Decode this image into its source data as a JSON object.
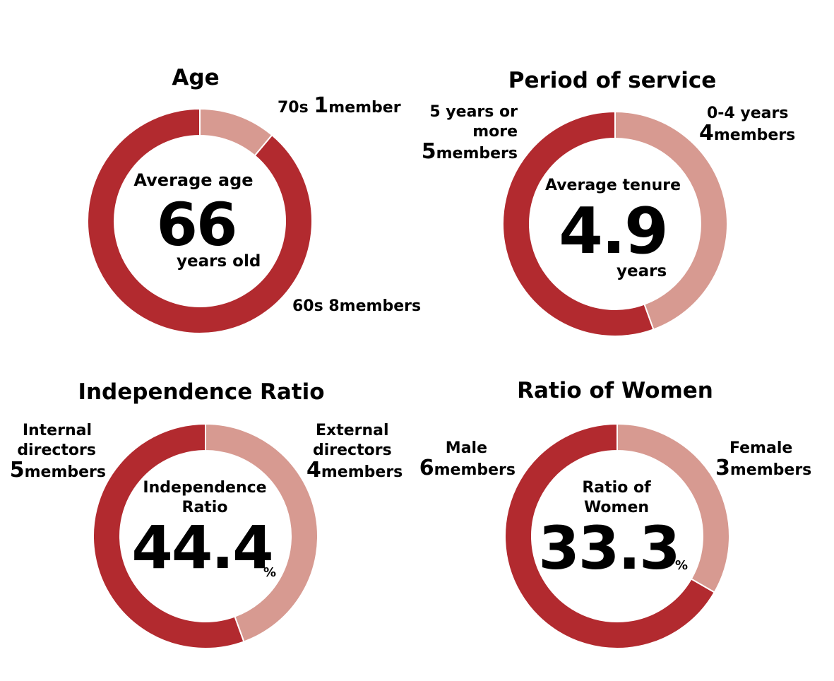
{
  "colors": {
    "dark": "#b22a2f",
    "light": "#d79a91"
  },
  "chart_data": [
    {
      "type": "pie",
      "title": "Age",
      "slices": [
        {
          "label": "70s",
          "value": 1,
          "unit": "member",
          "color": "light"
        },
        {
          "label": "60s",
          "value": 8,
          "unit": "members",
          "color": "dark"
        }
      ],
      "center": {
        "caption": "Average age",
        "value": "66",
        "unit": "years old"
      }
    },
    {
      "type": "pie",
      "title": "Period of service",
      "slices": [
        {
          "label": "0-4 years",
          "value": 4,
          "unit": "members",
          "color": "light"
        },
        {
          "label": "5 years or more",
          "value": 5,
          "unit": "members",
          "color": "dark"
        }
      ],
      "center": {
        "caption": "Average tenure",
        "value": "4.9",
        "unit": "years"
      }
    },
    {
      "type": "pie",
      "title": "Independence Ratio",
      "slices": [
        {
          "label": "External directors",
          "value": 4,
          "unit": "members",
          "color": "light"
        },
        {
          "label": "Internal directors",
          "value": 5,
          "unit": "members",
          "color": "dark"
        }
      ],
      "center": {
        "caption": "Independence Ratio",
        "value": "44.4",
        "unit": "%"
      }
    },
    {
      "type": "pie",
      "title": "Ratio of Women",
      "slices": [
        {
          "label": "Female",
          "value": 3,
          "unit": "members",
          "color": "light"
        },
        {
          "label": "Male",
          "value": 6,
          "unit": "members",
          "color": "dark"
        }
      ],
      "center": {
        "caption": "Ratio of Women",
        "value": "33.3",
        "unit": "%"
      }
    }
  ],
  "labels": {
    "age_70s_prefix": "70s",
    "age_70s_count": "1",
    "age_70s_unit": "member",
    "age_60s": "60s 8members",
    "svc_short_line": "0-4 years",
    "svc_short_count": "4",
    "svc_short_unit": "members",
    "svc_long_line1": "5 years or",
    "svc_long_line2": "more",
    "svc_long_count": "5",
    "svc_long_unit": "members",
    "ind_ext_line1": "External",
    "ind_ext_line2": "directors",
    "ind_ext_count": "4",
    "ind_ext_unit": "members",
    "ind_int_line1": "Internal",
    "ind_int_line2": "directors",
    "ind_int_count": "5",
    "ind_int_unit": "members",
    "wom_f_line": "Female",
    "wom_f_count": "3",
    "wom_f_unit": "members",
    "wom_m_line": "Male",
    "wom_m_count": "6",
    "wom_m_unit": "members",
    "ind_cap_line1": "Independence",
    "ind_cap_line2": "Ratio",
    "wom_cap_line1": "Ratio of",
    "wom_cap_line2": "Women"
  }
}
